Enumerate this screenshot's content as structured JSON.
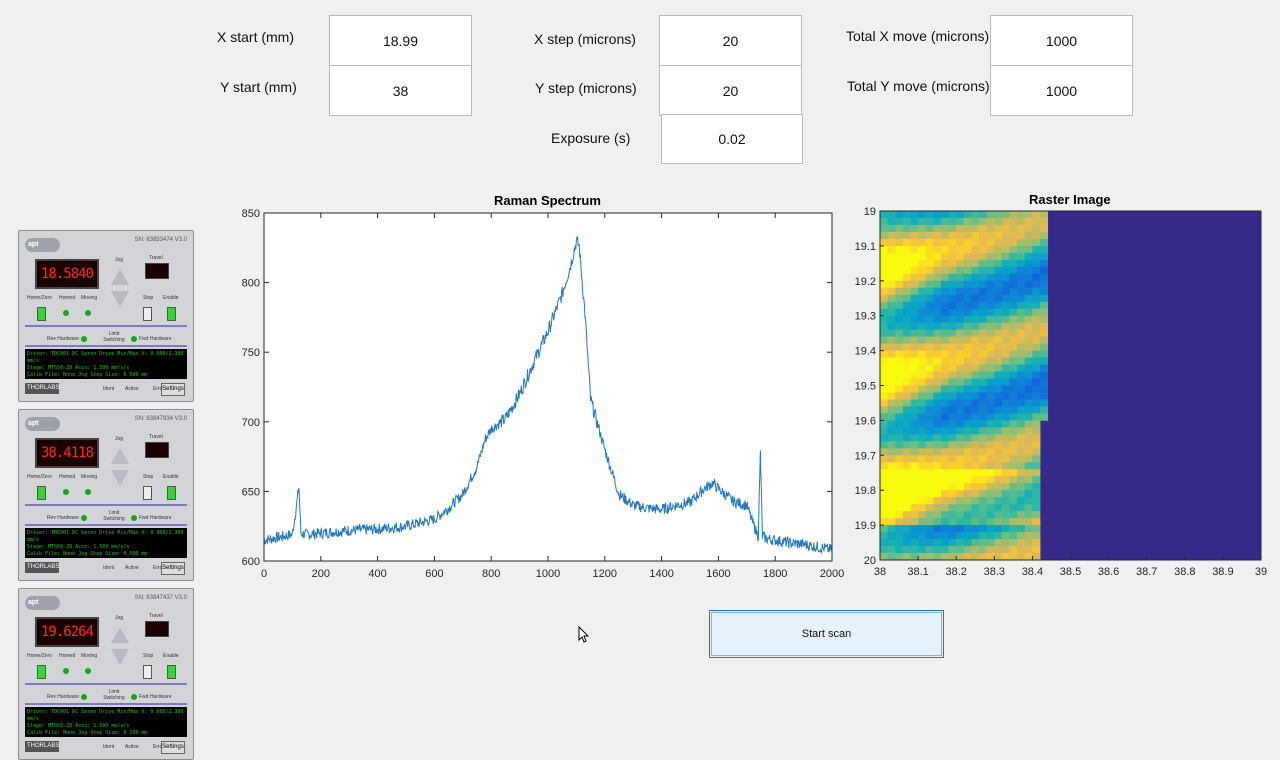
{
  "params": {
    "x_start_label": "X start (mm)",
    "x_start_value": "18.99",
    "y_start_label": "Y start (mm)",
    "y_start_value": "38",
    "x_step_label": "X step (microns)",
    "x_step_value": "20",
    "y_step_label": "Y step (microns)",
    "y_step_value": "20",
    "exposure_label": "Exposure (s)",
    "exposure_value": "0.02",
    "total_x_label": "Total X move (microns)",
    "total_x_value": "1000",
    "total_y_label": "Total Y move (microns)",
    "total_y_value": "1000"
  },
  "spectrum": {
    "title": "Raman Spectrum",
    "xlim": [
      0,
      2000
    ],
    "ylim": [
      600,
      850
    ],
    "x_ticks": [
      "0",
      "200",
      "400",
      "600",
      "800",
      "1000",
      "1200",
      "1400",
      "1600",
      "1800",
      "2000"
    ],
    "y_ticks": [
      "850",
      "800",
      "750",
      "700",
      "650",
      "600"
    ],
    "line_color": "#2878b8"
  },
  "raster": {
    "title": "Raster Image",
    "x_ticks": [
      "38",
      "38.1",
      "38.2",
      "38.3",
      "38.4",
      "38.5",
      "38.6",
      "38.7",
      "38.8",
      "38.9",
      "39"
    ],
    "y_ticks": [
      "19",
      "19.1",
      "19.2",
      "19.3",
      "19.4",
      "19.5",
      "19.6",
      "19.7",
      "19.8",
      "19.9",
      "20"
    ],
    "empty_color": "#352a87"
  },
  "start_button": "Start scan",
  "controllers": [
    {
      "sn": "SN: 83853474  V3.0",
      "display": "18.5840"
    },
    {
      "sn": "SN: 83847934  V3.0",
      "display": "38.4118"
    },
    {
      "sn": "SN: 83847437  V3.0",
      "display": "19.6264"
    }
  ],
  "controller_labels": {
    "logo": "apt",
    "jog": "Jog",
    "travel": "Travel",
    "home": "Home/Zero",
    "homed": "Homed",
    "moving": "Moving",
    "stop": "Stop",
    "enable": "Enable",
    "rev": "Rev Hardware",
    "limit": "Limit Switching",
    "fwd": "Fwd Hardware",
    "info1": "Driver: TDC001 DC Servo Drive   Min/Max V: 0.000/2.300 mm/s",
    "info2": "Stage: MTS50-Z8                         Accn: 1.500 mm/s/s",
    "info3": "Calib File: None                         Jog Step Size: 0.500 mm",
    "thor": "THORLABS",
    "ident": "Ident",
    "active": "Active",
    "error": "Error",
    "settings": "Settings"
  },
  "chart_data": [
    {
      "type": "line",
      "title": "Raman Spectrum",
      "xlim": [
        0,
        2000
      ],
      "ylim": [
        600,
        850
      ],
      "series": [
        {
          "x": [
            0,
            50,
            100,
            123,
            130,
            150,
            200,
            300,
            400,
            500,
            600,
            650,
            700,
            750,
            780,
            800,
            850,
            900,
            950,
            1000,
            1050,
            1080,
            1100,
            1110,
            1130,
            1150,
            1200,
            1250,
            1300,
            1350,
            1400,
            1450,
            1500,
            1550,
            1580,
            1600,
            1650,
            1700,
            1720,
            1740,
            1748,
            1755,
            1770,
            1800,
            1850,
            1900,
            1950,
            2000
          ],
          "y": [
            615,
            617,
            619,
            653,
            620,
            619,
            620,
            622,
            623,
            625,
            630,
            638,
            648,
            668,
            688,
            695,
            702,
            720,
            743,
            765,
            792,
            813,
            830,
            826,
            778,
            716,
            680,
            648,
            640,
            638,
            637,
            640,
            642,
            652,
            656,
            652,
            643,
            640,
            628,
            618,
            678,
            618,
            616,
            615,
            613,
            612,
            610,
            608
          ]
        }
      ]
    },
    {
      "type": "heatmap",
      "title": "Raster Image",
      "xlim": [
        38,
        39
      ],
      "ylim": [
        19,
        20
      ]
    }
  ]
}
